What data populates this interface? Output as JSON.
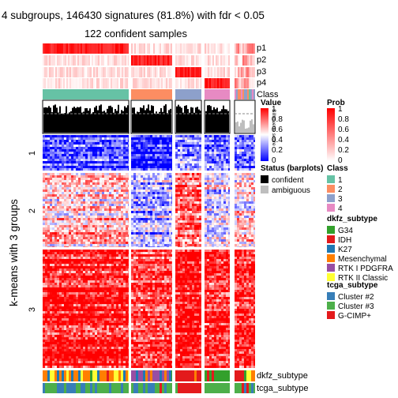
{
  "chart_data": {
    "type": "heatmap",
    "title": "4 subgroups, 146430 signatures (81.8%) with fdr < 0.05",
    "subtitle": "122 confident samples",
    "row_axis_label": "k-means with 3 groups",
    "row_groups": [
      "1",
      "2",
      "3"
    ],
    "annotation_labels": {
      "top": [
        "p1",
        "p2",
        "p3",
        "p4",
        "Class"
      ],
      "bottom": [
        "dkfz_subtype",
        "tcga_subtype"
      ]
    },
    "sample_groups": [
      "1",
      "2",
      "3",
      "4",
      "ambiguous"
    ],
    "value_legend": {
      "title": "Value",
      "ticks": [
        1,
        0.8,
        0.6,
        0.4,
        0.2,
        0
      ],
      "colors": [
        "#0000ff",
        "#ffffff",
        "#ff0000"
      ]
    },
    "prob_legend": {
      "title": "Prob",
      "ticks": [
        1,
        0.8,
        0.6,
        0.4,
        0.2,
        0
      ],
      "colors": [
        "#ffffff",
        "#ff0000"
      ]
    },
    "silhouette_label": "Silhouette score",
    "status_legend": {
      "title": "Status (barplots)",
      "items": [
        {
          "label": "confident",
          "color": "#000000"
        },
        {
          "label": "ambiguous",
          "color": "#bebebe"
        }
      ]
    },
    "class_legend": {
      "title": "Class",
      "items": [
        {
          "label": "1",
          "color": "#66c2a5"
        },
        {
          "label": "2",
          "color": "#fc8d62"
        },
        {
          "label": "3",
          "color": "#8da0cb"
        },
        {
          "label": "4",
          "color": "#e78ac3"
        }
      ]
    },
    "dkfz_legend": {
      "title": "dkfz_subtype",
      "items": [
        {
          "label": "G34",
          "color": "#33a02c"
        },
        {
          "label": "IDH",
          "color": "#e31a1c"
        },
        {
          "label": "K27",
          "color": "#1f78b4"
        },
        {
          "label": "Mesenchymal",
          "color": "#ff7f00"
        },
        {
          "label": "RTK I PDGFRA",
          "color": "#984ea3"
        },
        {
          "label": "RTK II Classic",
          "color": "#ffff33"
        }
      ]
    },
    "tcga_legend": {
      "title": "tcga_subtype",
      "items": [
        {
          "label": "Cluster #2",
          "color": "#377eb8"
        },
        {
          "label": "Cluster #3",
          "color": "#4daf4a"
        },
        {
          "label": "G-CIMP+",
          "color": "#e41a1c"
        }
      ]
    }
  }
}
